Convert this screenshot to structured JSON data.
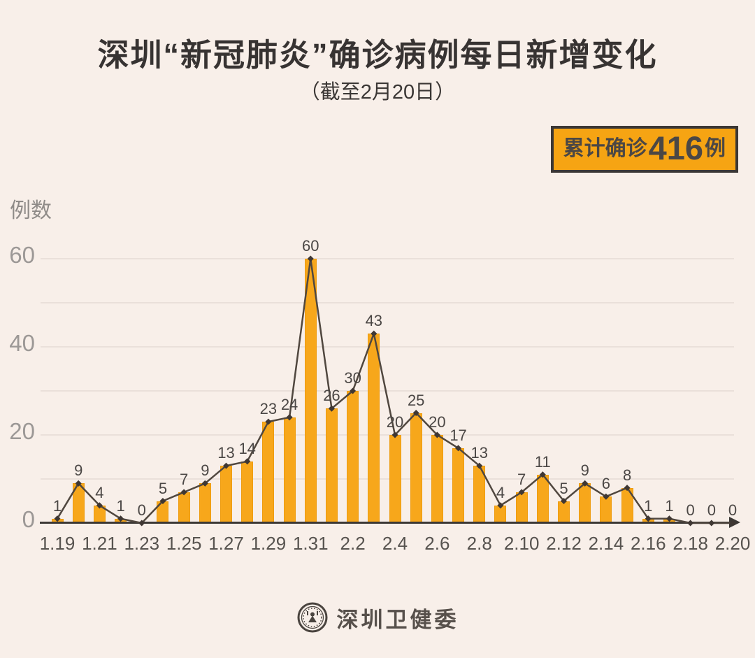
{
  "page": {
    "title": "深圳“新冠肺炎”确诊病例每日新增变化",
    "subtitle": "（截至2月20日）",
    "badge": {
      "prefix": "累计确诊",
      "number": "416",
      "suffix": "例"
    },
    "footer_org": "深圳卫健委"
  },
  "colors": {
    "background": "#F8EFE9",
    "bar": "#F7A71B",
    "badge_bg": "#F6A413",
    "badge_border": "#3B3735",
    "line": "#50473F",
    "marker": "#3F3733",
    "axis": "#3C3835",
    "grid": "#EAE0DA",
    "title_text": "#373332",
    "value_label_text": "#4B4745",
    "xtick_text": "#57534F",
    "ytick_text": "#9C9896"
  },
  "chart_data": {
    "type": "bar",
    "overlay": "line",
    "title": "深圳“新冠肺炎”确诊病例每日新增变化",
    "subtitle": "（截至2月20日）",
    "ylabel": "例数",
    "xlabel": "",
    "x": [
      "1.19",
      "1.20",
      "1.21",
      "1.22",
      "1.23",
      "1.24",
      "1.25",
      "1.26",
      "1.27",
      "1.28",
      "1.29",
      "1.30",
      "1.31",
      "2.1",
      "2.2",
      "2.3",
      "2.4",
      "2.5",
      "2.6",
      "2.7",
      "2.8",
      "2.9",
      "2.10",
      "2.11",
      "2.12",
      "2.13",
      "2.14",
      "2.15",
      "2.16",
      "2.17",
      "2.18",
      "2.19",
      "2.20"
    ],
    "values": [
      1,
      9,
      4,
      1,
      0,
      5,
      7,
      9,
      13,
      14,
      23,
      24,
      60,
      26,
      30,
      43,
      20,
      25,
      20,
      17,
      13,
      4,
      7,
      11,
      5,
      9,
      6,
      8,
      1,
      1,
      0,
      0,
      0
    ],
    "xticks": [
      "1.19",
      "1.21",
      "1.23",
      "1.25",
      "1.27",
      "1.29",
      "1.31",
      "2.2",
      "2.4",
      "2.6",
      "2.8",
      "2.10",
      "2.12",
      "2.14",
      "2.16",
      "2.18",
      "2.20"
    ],
    "yticks": [
      0,
      20,
      40,
      60
    ],
    "ylim": [
      0,
      63
    ],
    "grid": true,
    "grid_interval": 10,
    "legend": null,
    "annotation_total": 416
  }
}
